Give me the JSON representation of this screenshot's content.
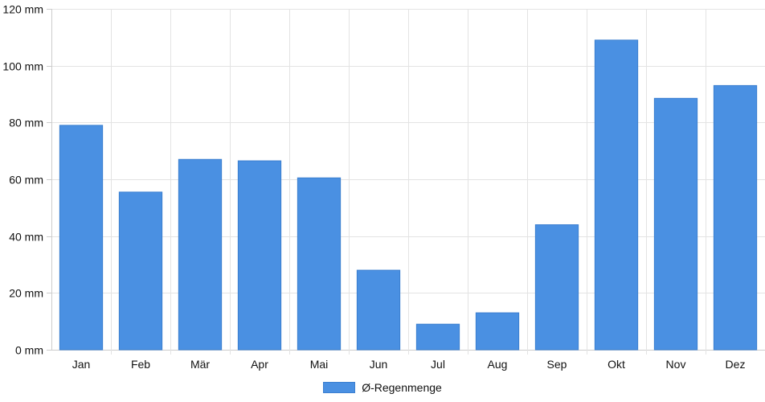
{
  "chart_data": {
    "type": "bar",
    "categories": [
      "Jan",
      "Feb",
      "Mär",
      "Apr",
      "Mai",
      "Jun",
      "Jul",
      "Aug",
      "Sep",
      "Okt",
      "Nov",
      "Dez"
    ],
    "series": [
      {
        "name": "Ø-Regenmenge",
        "values": [
          79,
          55.5,
          67,
          66.5,
          60.5,
          28,
          9,
          13,
          44,
          109,
          88.5,
          93
        ]
      }
    ],
    "ylim": [
      0,
      120
    ],
    "yticks": [
      0,
      20,
      40,
      60,
      80,
      100,
      120
    ],
    "y_unit": "mm",
    "grid": true,
    "legend_position": "bottom",
    "colors": {
      "bar_fill": "#4a90e2",
      "bar_border": "#3b7fd0",
      "grid": "#e3e3e3",
      "axis": "#cccccc"
    }
  }
}
